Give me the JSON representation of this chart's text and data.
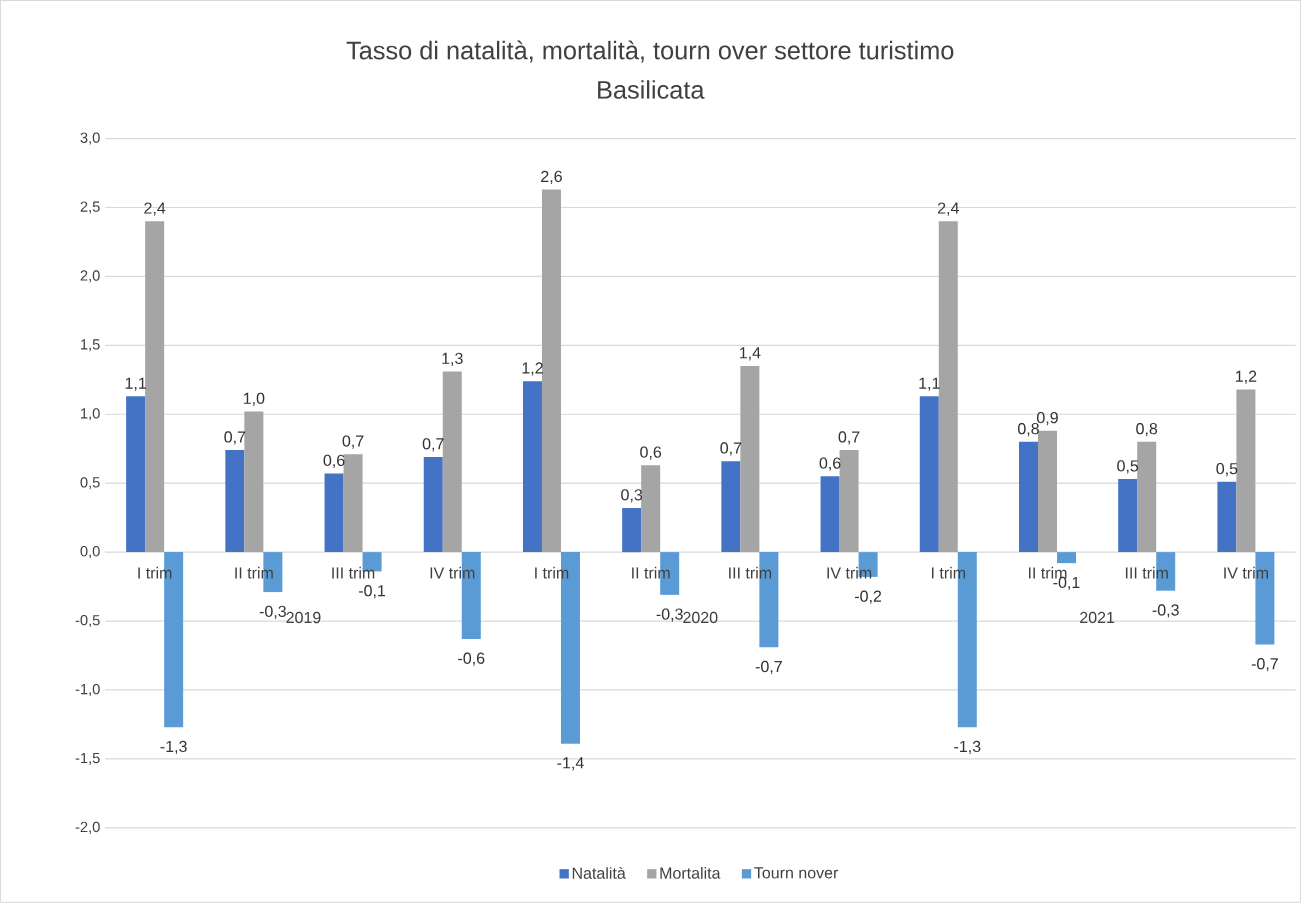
{
  "chart_data": {
    "type": "bar",
    "title": "Tasso di natalità, mortalità, tourn over settore turistimo",
    "subtitle": "Basilicata",
    "categories": [
      "I trim",
      "II trim",
      "III trim",
      "IV trim",
      "I trim",
      "II trim",
      "III trim",
      "IV trim",
      "I trim",
      "II trim",
      "III trim",
      "IV trim"
    ],
    "annotations": [
      "2019",
      "2020",
      "2021"
    ],
    "series": [
      {
        "name": "Natalità",
        "color": "#4472c4",
        "values": [
          1.13,
          0.74,
          0.57,
          0.69,
          1.24,
          0.32,
          0.66,
          0.55,
          1.13,
          0.8,
          0.53,
          0.51
        ],
        "value_labels": [
          "1,1",
          "0,7",
          "0,6",
          "0,7",
          "1,2",
          "0,3",
          "0,7",
          "0,6",
          "1,1",
          "0,8",
          "0,5",
          "0,5"
        ]
      },
      {
        "name": "Mortalita",
        "color": "#a5a5a5",
        "values": [
          2.4,
          1.02,
          0.71,
          1.31,
          2.63,
          0.63,
          1.35,
          0.74,
          2.4,
          0.88,
          0.8,
          1.18
        ],
        "value_labels": [
          "2,4",
          "1,0",
          "0,7",
          "1,3",
          "2,6",
          "0,6",
          "1,4",
          "0,7",
          "2,4",
          "0,9",
          "0,8",
          "1,2"
        ]
      },
      {
        "name": "Tourn nover",
        "color": "#5b9bd5",
        "values": [
          -1.27,
          -0.29,
          -0.14,
          -0.63,
          -1.39,
          -0.31,
          -0.69,
          -0.18,
          -1.27,
          -0.08,
          -0.28,
          -0.67
        ],
        "value_labels": [
          "-1,3",
          "-0,3",
          "-0,1",
          "-0,6",
          "-1,4",
          "-0,3",
          "-0,7",
          "-0,2",
          "-1,3",
          "-0,1",
          "-0,3",
          "-0,7"
        ]
      }
    ],
    "ylim": [
      -2.0,
      3.0
    ],
    "yticks": [
      {
        "value": -2.0,
        "label": "-2,0"
      },
      {
        "value": -1.5,
        "label": "-1,5"
      },
      {
        "value": -1.0,
        "label": "-1,0"
      },
      {
        "value": -0.5,
        "label": "-0,5"
      },
      {
        "value": 0.0,
        "label": "0,0"
      },
      {
        "value": 0.5,
        "label": "0,5"
      },
      {
        "value": 1.0,
        "label": "1,0"
      },
      {
        "value": 1.5,
        "label": "1,5"
      },
      {
        "value": 2.0,
        "label": "2,0"
      },
      {
        "value": 2.5,
        "label": "2,5"
      },
      {
        "value": 3.0,
        "label": "3,0"
      }
    ],
    "grid": "y",
    "legend": "bottom"
  }
}
